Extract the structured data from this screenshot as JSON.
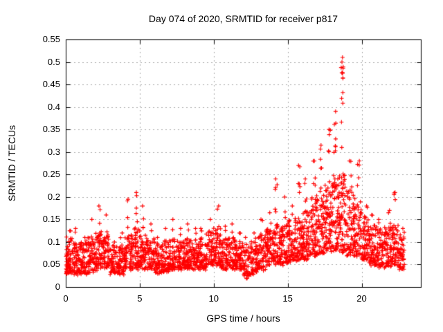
{
  "figure": {
    "background": "#ffffff",
    "axis_color": "#000000",
    "text_color": "#000000"
  },
  "chart_data": {
    "type": "scatter",
    "title": "Day 074 of 2020, SRMTID for receiver p817",
    "xlabel": "GPS time / hours",
    "ylabel": "SRMTID / TECUs",
    "xlim": [
      0,
      24
    ],
    "ylim": [
      0,
      0.55
    ],
    "xticks": [
      {
        "v": 0,
        "label": "0"
      },
      {
        "v": 5,
        "label": "5"
      },
      {
        "v": 10,
        "label": "10"
      },
      {
        "v": 15,
        "label": "15"
      },
      {
        "v": 20,
        "label": "20"
      }
    ],
    "yticks": [
      {
        "v": 0,
        "label": "0"
      },
      {
        "v": 0.05,
        "label": "0.05"
      },
      {
        "v": 0.1,
        "label": "0.1"
      },
      {
        "v": 0.15,
        "label": "0.15"
      },
      {
        "v": 0.2,
        "label": "0.2"
      },
      {
        "v": 0.25,
        "label": "0.25"
      },
      {
        "v": 0.3,
        "label": "0.3"
      },
      {
        "v": 0.35,
        "label": "0.35"
      },
      {
        "v": 0.4,
        "label": "0.4"
      },
      {
        "v": 0.45,
        "label": "0.45"
      },
      {
        "v": 0.5,
        "label": "0.5"
      },
      {
        "v": 0.55,
        "label": "0.55"
      }
    ],
    "grid": {
      "show": true,
      "style": "dashed",
      "color": "#ababab"
    },
    "marker": {
      "shape": "plus",
      "color": "#ff0000",
      "size": 7
    },
    "t_start": 0,
    "t_end": 22.9,
    "peak_point": {
      "t": 18.6,
      "v": 0.51
    },
    "envelope_bins": [
      {
        "t": 0.0,
        "lo": 0.03,
        "hi": 0.11,
        "max": 0.125,
        "n": 72
      },
      {
        "t": 0.5,
        "lo": 0.03,
        "hi": 0.1,
        "max": 0.13,
        "n": 58
      },
      {
        "t": 1.0,
        "lo": 0.03,
        "hi": 0.1,
        "max": 0.11,
        "n": 55
      },
      {
        "t": 1.5,
        "lo": 0.035,
        "hi": 0.11,
        "max": 0.15,
        "n": 58
      },
      {
        "t": 2.0,
        "lo": 0.04,
        "hi": 0.12,
        "max": 0.18,
        "n": 60
      },
      {
        "t": 2.5,
        "lo": 0.04,
        "hi": 0.12,
        "max": 0.16,
        "n": 55
      },
      {
        "t": 3.0,
        "lo": 0.03,
        "hi": 0.09,
        "max": 0.1,
        "n": 55
      },
      {
        "t": 3.5,
        "lo": 0.03,
        "hi": 0.095,
        "max": 0.12,
        "n": 55
      },
      {
        "t": 4.0,
        "lo": 0.04,
        "hi": 0.12,
        "max": 0.195,
        "n": 60
      },
      {
        "t": 4.5,
        "lo": 0.04,
        "hi": 0.13,
        "max": 0.21,
        "n": 60
      },
      {
        "t": 5.0,
        "lo": 0.04,
        "hi": 0.115,
        "max": 0.18,
        "n": 56
      },
      {
        "t": 5.5,
        "lo": 0.04,
        "hi": 0.11,
        "max": 0.14,
        "n": 55
      },
      {
        "t": 6.0,
        "lo": 0.03,
        "hi": 0.095,
        "max": 0.11,
        "n": 55
      },
      {
        "t": 6.5,
        "lo": 0.035,
        "hi": 0.1,
        "max": 0.13,
        "n": 55
      },
      {
        "t": 7.0,
        "lo": 0.04,
        "hi": 0.11,
        "max": 0.15,
        "n": 56
      },
      {
        "t": 7.5,
        "lo": 0.04,
        "hi": 0.105,
        "max": 0.13,
        "n": 55
      },
      {
        "t": 8.0,
        "lo": 0.04,
        "hi": 0.11,
        "max": 0.14,
        "n": 58
      },
      {
        "t": 8.5,
        "lo": 0.04,
        "hi": 0.11,
        "max": 0.13,
        "n": 55
      },
      {
        "t": 9.0,
        "lo": 0.04,
        "hi": 0.11,
        "max": 0.13,
        "n": 55
      },
      {
        "t": 9.5,
        "lo": 0.05,
        "hi": 0.12,
        "max": 0.15,
        "n": 58
      },
      {
        "t": 10.0,
        "lo": 0.05,
        "hi": 0.13,
        "max": 0.18,
        "n": 60
      },
      {
        "t": 10.5,
        "lo": 0.04,
        "hi": 0.11,
        "max": 0.135,
        "n": 55
      },
      {
        "t": 11.0,
        "lo": 0.04,
        "hi": 0.11,
        "max": 0.14,
        "n": 55
      },
      {
        "t": 11.5,
        "lo": 0.04,
        "hi": 0.1,
        "max": 0.12,
        "n": 55
      },
      {
        "t": 12.0,
        "lo": 0.02,
        "hi": 0.09,
        "max": 0.11,
        "n": 52
      },
      {
        "t": 12.5,
        "lo": 0.03,
        "hi": 0.1,
        "max": 0.12,
        "n": 54
      },
      {
        "t": 13.0,
        "lo": 0.04,
        "hi": 0.12,
        "max": 0.15,
        "n": 56
      },
      {
        "t": 13.5,
        "lo": 0.05,
        "hi": 0.13,
        "max": 0.165,
        "n": 58
      },
      {
        "t": 14.0,
        "lo": 0.05,
        "hi": 0.14,
        "max": 0.24,
        "n": 60
      },
      {
        "t": 14.5,
        "lo": 0.05,
        "hi": 0.14,
        "max": 0.2,
        "n": 60
      },
      {
        "t": 15.0,
        "lo": 0.055,
        "hi": 0.15,
        "max": 0.18,
        "n": 60
      },
      {
        "t": 15.5,
        "lo": 0.06,
        "hi": 0.16,
        "max": 0.27,
        "n": 64
      },
      {
        "t": 16.0,
        "lo": 0.06,
        "hi": 0.17,
        "max": 0.24,
        "n": 64
      },
      {
        "t": 16.5,
        "lo": 0.07,
        "hi": 0.2,
        "max": 0.28,
        "n": 64
      },
      {
        "t": 17.0,
        "lo": 0.075,
        "hi": 0.21,
        "max": 0.315,
        "n": 64
      },
      {
        "t": 17.5,
        "lo": 0.08,
        "hi": 0.23,
        "max": 0.35,
        "n": 68
      },
      {
        "t": 18.0,
        "lo": 0.08,
        "hi": 0.25,
        "max": 0.39,
        "n": 68
      },
      {
        "t": 18.5,
        "lo": 0.08,
        "hi": 0.26,
        "max": 0.51,
        "n": 68
      },
      {
        "t": 19.0,
        "lo": 0.07,
        "hi": 0.22,
        "max": 0.28,
        "n": 62
      },
      {
        "t": 19.5,
        "lo": 0.07,
        "hi": 0.2,
        "max": 0.28,
        "n": 62
      },
      {
        "t": 20.0,
        "lo": 0.06,
        "hi": 0.16,
        "max": 0.18,
        "n": 60
      },
      {
        "t": 20.5,
        "lo": 0.05,
        "hi": 0.14,
        "max": 0.16,
        "n": 58
      },
      {
        "t": 21.0,
        "lo": 0.045,
        "hi": 0.13,
        "max": 0.15,
        "n": 58
      },
      {
        "t": 21.5,
        "lo": 0.04,
        "hi": 0.14,
        "max": 0.17,
        "n": 58
      },
      {
        "t": 22.0,
        "lo": 0.05,
        "hi": 0.135,
        "max": 0.21,
        "n": 58
      },
      {
        "t": 22.5,
        "lo": 0.04,
        "hi": 0.12,
        "max": 0.13,
        "n": 46
      }
    ]
  }
}
